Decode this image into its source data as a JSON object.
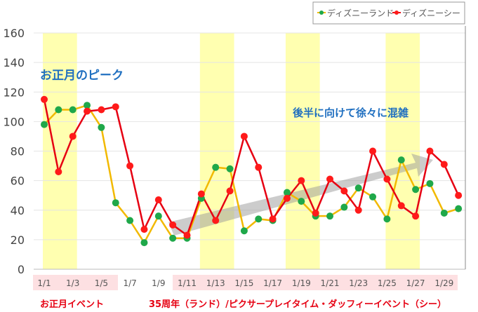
{
  "chart_data": {
    "type": "line",
    "title": "",
    "xlabel": "",
    "ylabel": "",
    "ylim": [
      0,
      160
    ],
    "yticks": [
      0,
      20,
      40,
      60,
      80,
      100,
      120,
      140,
      160
    ],
    "grid": true,
    "legend_position": "top-right",
    "x": [
      "1/1",
      "1/2",
      "1/3",
      "1/4",
      "1/5",
      "1/6",
      "1/7",
      "1/8",
      "1/9",
      "1/10",
      "1/11",
      "1/12",
      "1/13",
      "1/14",
      "1/15",
      "1/16",
      "1/17",
      "1/18",
      "1/19",
      "1/20",
      "1/21",
      "1/22",
      "1/23",
      "1/24",
      "1/25",
      "1/26",
      "1/27",
      "1/28",
      "1/29",
      "1/30"
    ],
    "xtick_labels": [
      "1/1",
      "1/3",
      "1/5",
      "1/7",
      "1/9",
      "1/11",
      "1/13",
      "1/15",
      "1/17",
      "1/19",
      "1/21",
      "1/23",
      "1/25",
      "1/27",
      "1/29"
    ],
    "series": [
      {
        "name": "ディズニーランド",
        "line_color": "#f2b900",
        "marker_color": "#1fa84a",
        "values": [
          98,
          108,
          108,
          111,
          96,
          45,
          33,
          18,
          36,
          21,
          21,
          48,
          69,
          68,
          26,
          34,
          33,
          52,
          46,
          36,
          36,
          42,
          55,
          49,
          34,
          74,
          54,
          58,
          38,
          41
        ]
      },
      {
        "name": "ディズニーシー",
        "line_color": "#e60012",
        "marker_color": "#ff1a1a",
        "values": [
          115,
          66,
          90,
          107,
          108,
          110,
          70,
          27,
          47,
          30,
          23,
          51,
          33,
          53,
          90,
          69,
          34,
          48,
          60,
          38,
          61,
          53,
          40,
          80,
          61,
          43,
          36,
          80,
          71,
          50
        ]
      }
    ],
    "highlight_ranges": [
      [
        "1/1",
        "1/3"
      ],
      [
        "1/12",
        "1/14"
      ],
      [
        "1/18",
        "1/20"
      ],
      [
        "1/25",
        "1/27"
      ]
    ],
    "highlight_color": "#ffffb0",
    "annotations": [
      {
        "text": "お正月のピーク",
        "color": "#1f6fc0"
      },
      {
        "text": "後半に向けて徐々に混雑",
        "color": "#1f6fc0"
      }
    ],
    "event_labels": [
      {
        "text": "お正月イベント",
        "color": "#e60012"
      },
      {
        "text": "35周年（ランド）/ピクサープレイタイム・ダッフィーイベント（シー）",
        "color": "#e60012"
      }
    ],
    "event_label_bg": "#fde0e2"
  }
}
